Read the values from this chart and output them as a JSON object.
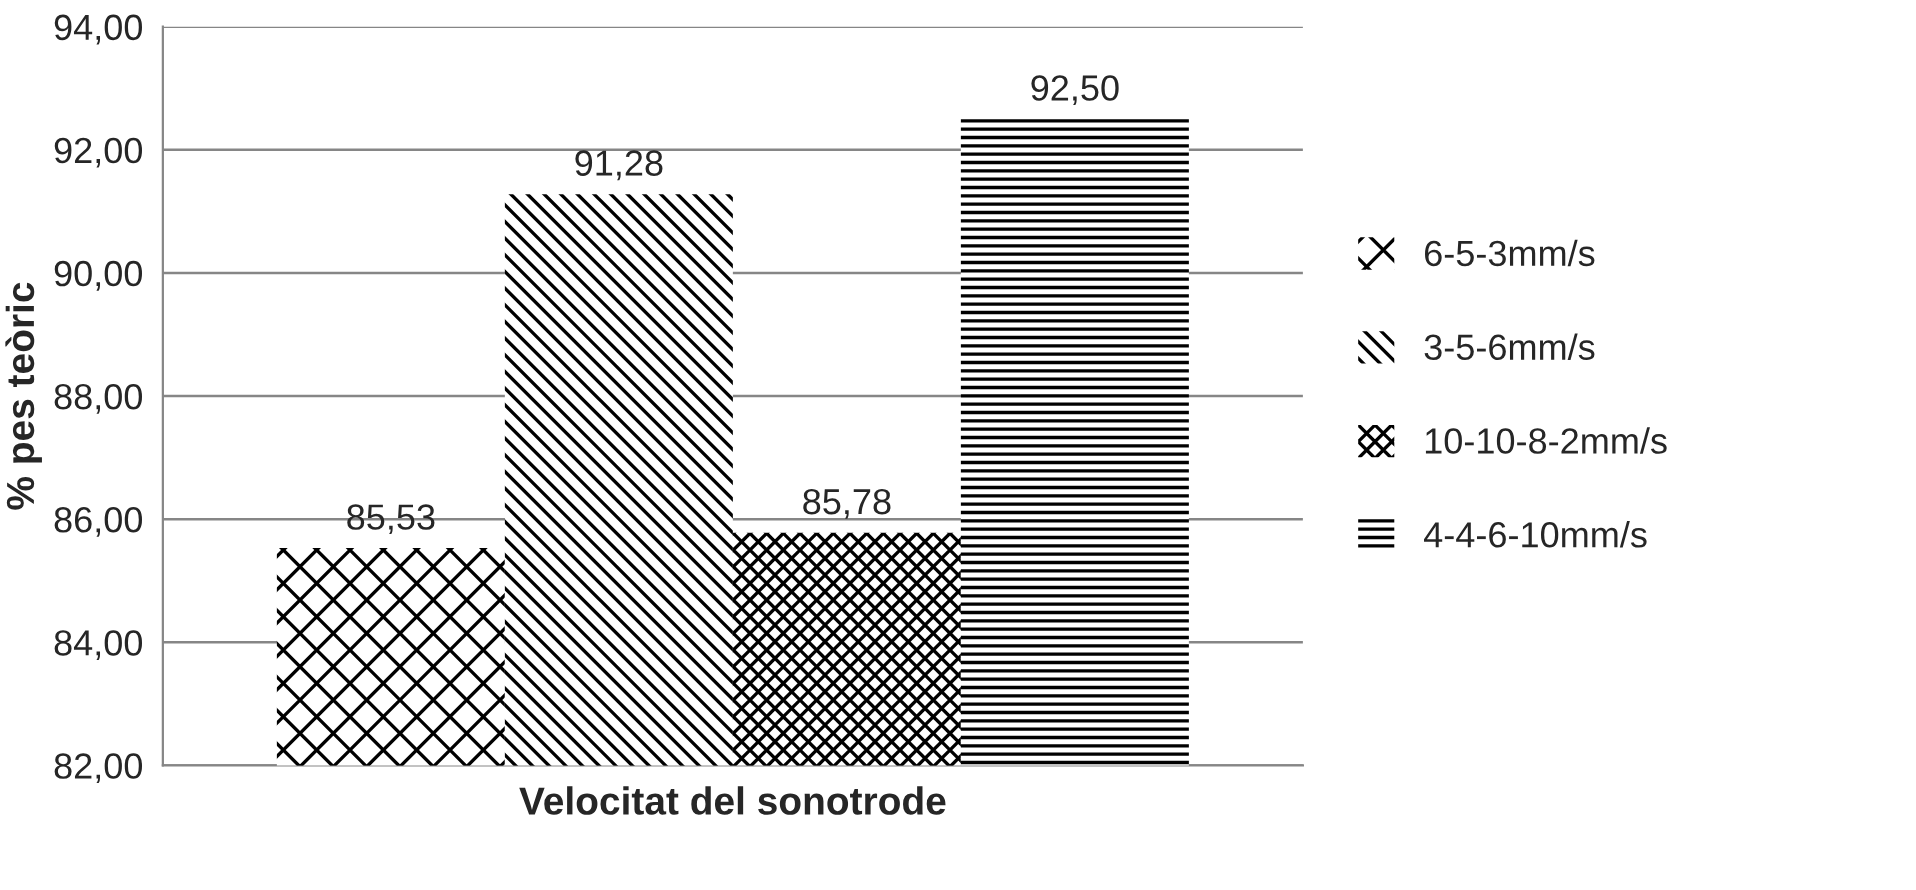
{
  "chart_data": {
    "type": "bar",
    "xlabel": "Velocitat del sonotrode",
    "ylabel": "% pes teòric",
    "categories": [
      null
    ],
    "series": [
      {
        "name": "6-5-3mm/s",
        "color": "#000000",
        "values": [
          85.53
        ],
        "value_labels": [
          "85,53"
        ]
      },
      {
        "name": "3-5-6mm/s",
        "color": "#000000",
        "values": [
          91.28
        ],
        "value_labels": [
          "91,28"
        ]
      },
      {
        "name": "10-10-8-2mm/s",
        "color": "#000000",
        "values": [
          85.78
        ],
        "value_labels": [
          "85,78"
        ]
      },
      {
        "name": "4-4-6-10mm/s",
        "color": "#000000",
        "values": [
          92.5
        ],
        "value_labels": [
          "92,50"
        ]
      }
    ],
    "ylim": [
      82,
      94
    ],
    "yticks": [
      {
        "value": 82,
        "label": "82,00"
      },
      {
        "value": 84,
        "label": "84,00"
      },
      {
        "value": 86,
        "label": "86,00"
      },
      {
        "value": 88,
        "label": "88,00"
      },
      {
        "value": 90,
        "label": "90,00"
      },
      {
        "value": 92,
        "label": "92,00"
      },
      {
        "value": 94,
        "label": "94,00"
      }
    ],
    "grid": "y",
    "legend": "right"
  }
}
